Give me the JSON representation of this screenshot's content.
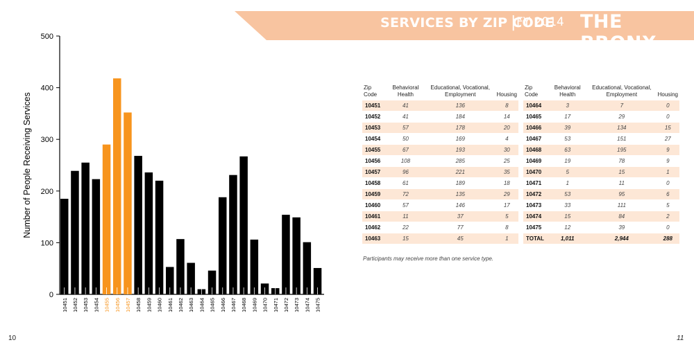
{
  "header": {
    "title": "SERVICES BY ZIP CODE",
    "separator": "|",
    "year": "FY 2014",
    "region": "THE BRONX",
    "banner_color": "#f8c4a0"
  },
  "page_numbers": {
    "left": "10",
    "right": "11"
  },
  "chart_data": {
    "type": "bar",
    "ylabel": "Number of People Receiving Services",
    "xlabel": "",
    "ylim": [
      0,
      500
    ],
    "yticks": [
      0,
      100,
      200,
      300,
      400,
      500
    ],
    "grid": false,
    "categories": [
      "10451",
      "10452",
      "10453",
      "10454",
      "10455",
      "10456",
      "10457",
      "10458",
      "10459",
      "10460",
      "10461",
      "10462",
      "10463",
      "10464",
      "10465",
      "10466",
      "10467",
      "10468",
      "10469",
      "10470",
      "10471",
      "10472",
      "10473",
      "10474",
      "10475"
    ],
    "values": [
      185,
      239,
      255,
      223,
      290,
      418,
      352,
      268,
      236,
      220,
      53,
      107,
      61,
      10,
      46,
      188,
      231,
      267,
      106,
      21,
      12,
      154,
      149,
      101,
      51
    ],
    "highlighted": [
      "10455",
      "10456",
      "10457"
    ],
    "colors": {
      "default": "#000000",
      "highlight": "#f7941d"
    }
  },
  "tables": {
    "columns": [
      "Zip Code",
      "Behavioral Health",
      "Educational, Vocational, Employment",
      "Housing"
    ],
    "left_rows": [
      [
        "10451",
        "41",
        "136",
        "8"
      ],
      [
        "10452",
        "41",
        "184",
        "14"
      ],
      [
        "10453",
        "57",
        "178",
        "20"
      ],
      [
        "10454",
        "50",
        "169",
        "4"
      ],
      [
        "10455",
        "67",
        "193",
        "30"
      ],
      [
        "10456",
        "108",
        "285",
        "25"
      ],
      [
        "10457",
        "96",
        "221",
        "35"
      ],
      [
        "10458",
        "61",
        "189",
        "18"
      ],
      [
        "10459",
        "72",
        "135",
        "29"
      ],
      [
        "10460",
        "57",
        "146",
        "17"
      ],
      [
        "10461",
        "11",
        "37",
        "5"
      ],
      [
        "10462",
        "22",
        "77",
        "8"
      ],
      [
        "10463",
        "15",
        "45",
        "1"
      ]
    ],
    "right_rows": [
      [
        "10464",
        "3",
        "7",
        "0"
      ],
      [
        "10465",
        "17",
        "29",
        "0"
      ],
      [
        "10466",
        "39",
        "134",
        "15"
      ],
      [
        "10467",
        "53",
        "151",
        "27"
      ],
      [
        "10468",
        "63",
        "195",
        "9"
      ],
      [
        "10469",
        "19",
        "78",
        "9"
      ],
      [
        "10470",
        "5",
        "15",
        "1"
      ],
      [
        "10471",
        "1",
        "11",
        "0"
      ],
      [
        "10472",
        "53",
        "95",
        "6"
      ],
      [
        "10473",
        "33",
        "111",
        "5"
      ],
      [
        "10474",
        "15",
        "84",
        "2"
      ],
      [
        "10475",
        "12",
        "39",
        "0"
      ],
      [
        "TOTAL",
        "1,011",
        "2,944",
        "288"
      ]
    ],
    "note": "Participants may receive more than one service type."
  }
}
